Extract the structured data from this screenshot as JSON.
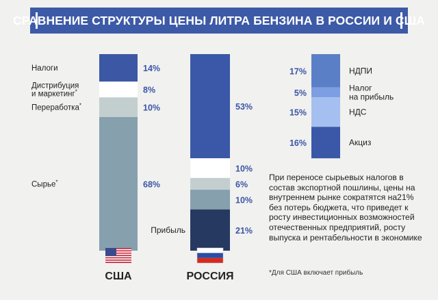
{
  "chart_data": {
    "type": "stacked-bar",
    "title": "СРАВНЕНИЕ СТРУКТУРЫ ЦЕНЫ ЛИТРА БЕНЗИНА В РОССИИ И США",
    "ylim": [
      0,
      100
    ],
    "colors": {
      "title_bar": "#3d5aa6",
      "label_blue": "#3b56a3",
      "text": "#222222",
      "white": "#ffffff"
    },
    "bars": [
      {
        "country": "США",
        "segments": [
          {
            "name": "Налоги",
            "value": 14,
            "label": "14%",
            "color": "#3c58a4"
          },
          {
            "name": "Дистрибуция и маркетинг*",
            "value": 8,
            "label": "8%",
            "color": "#ffffff"
          },
          {
            "name": "Переработка*",
            "value": 10,
            "label": "10%",
            "color": "#c3cfcf"
          },
          {
            "name": "Сырье*",
            "value": 68,
            "label": "68%",
            "color": "#86a0ae"
          }
        ]
      },
      {
        "country": "РОССИЯ",
        "segments": [
          {
            "name": "Налоги",
            "value": 53,
            "label": "53%",
            "color": "#3a58a7"
          },
          {
            "name": "Дистрибуция и маркетинг",
            "value": 10,
            "label": "10%",
            "color": "#ffffff"
          },
          {
            "name": "Переработка",
            "value": 6,
            "label": "6%",
            "color": "#c3cfcf"
          },
          {
            "name": "Сырье",
            "value": 10,
            "label": "10%",
            "color": "#86a0ae"
          },
          {
            "name": "Прибыль",
            "value": 21,
            "label": "21%",
            "color": "#263960"
          }
        ]
      }
    ],
    "tax_breakdown": [
      {
        "name": "НДПИ",
        "value": 17,
        "label": "17%",
        "color": "#5b7fc6"
      },
      {
        "name": "Налог на прибыль",
        "value": 5,
        "label": "5%",
        "color": "#7d9ee2"
      },
      {
        "name": "НДС",
        "value": 15,
        "label": "15%",
        "color": "#a5bff0"
      },
      {
        "name": "Акциз",
        "value": 16,
        "label": "16%",
        "color": "#3a58a7"
      }
    ],
    "left_labels": [
      {
        "text": [
          "Налоги"
        ],
        "segment": 0,
        "sup": false
      },
      {
        "text": [
          "Дистрибуция",
          "и маркетинг"
        ],
        "segment": 1,
        "sup": true
      },
      {
        "text": [
          "Переработка"
        ],
        "segment": 2,
        "sup": true
      },
      {
        "text": [
          "Сырье"
        ],
        "segment": 3,
        "sup": true
      }
    ],
    "right_labels": [
      {
        "text": [
          "НДПИ"
        ],
        "segment": 0
      },
      {
        "text": [
          "Налог",
          "на прибыль"
        ],
        "segment": 1
      },
      {
        "text": [
          "НДС"
        ],
        "segment": 2
      },
      {
        "text": [
          "Акциз"
        ],
        "segment": 3
      }
    ],
    "russia_inline_label": "Прибыль",
    "sup_mark": "*"
  },
  "note": "При переносе сырьевых налогов в состав экспортной пошлины, цены на внутреннем рынке сократятся на21% без потерь бюджета, что приведет к росту инвестиционных возможностей отечественных предприятий, росту выпуска и рентабельности в экономике",
  "footnote": "*Для США включает прибыль",
  "flags": {
    "usa": {
      "icon": "us-flag-icon",
      "stripe_red": "#c5283d",
      "canton": "#3a4a8c"
    },
    "russia": {
      "icon": "russia-flag-icon",
      "white": "#ffffff",
      "blue": "#2b4ea2",
      "red": "#d52b1e"
    }
  }
}
